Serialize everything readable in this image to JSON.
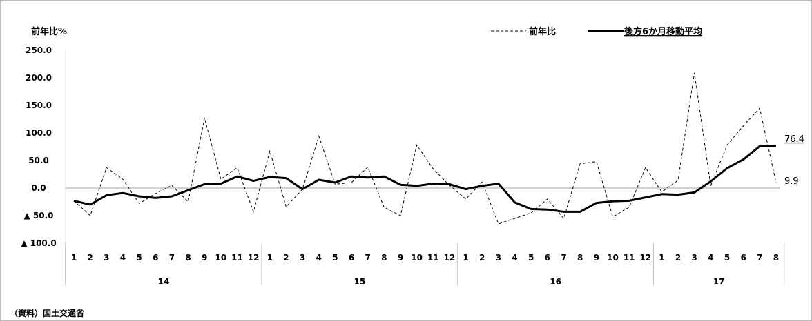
{
  "chart_data": {
    "type": "line",
    "ylabel": "前年比%",
    "ylim": [
      -100,
      250
    ],
    "yticks": [
      250,
      200,
      150,
      100,
      50,
      0,
      -50,
      -100
    ],
    "ytick_labels": [
      "250.0",
      "200.0",
      "150.0",
      "100.0",
      "50.0",
      "0.0",
      "▲ 50.0",
      "▲ 100.0"
    ],
    "months": [
      "1",
      "2",
      "3",
      "4",
      "5",
      "6",
      "7",
      "8",
      "9",
      "10",
      "11",
      "12",
      "1",
      "2",
      "3",
      "4",
      "5",
      "6",
      "7",
      "8",
      "9",
      "10",
      "11",
      "12",
      "1",
      "2",
      "3",
      "4",
      "5",
      "6",
      "7",
      "8",
      "9",
      "10",
      "11",
      "12",
      "1",
      "2",
      "3",
      "4",
      "5",
      "6",
      "7",
      "8"
    ],
    "years": [
      {
        "label": "14",
        "months": 12
      },
      {
        "label": "15",
        "months": 12
      },
      {
        "label": "16",
        "months": 12
      },
      {
        "label": "17",
        "months": 8
      }
    ],
    "series": [
      {
        "name": "前年比",
        "style": "dashed",
        "values": [
          -23,
          -50,
          37,
          16,
          -28,
          -10,
          5,
          -25,
          127,
          16,
          37,
          -43,
          67,
          -34,
          -2,
          94,
          7,
          10,
          38,
          -35,
          -50,
          78,
          35,
          5,
          -20,
          11,
          -65,
          -55,
          -45,
          -20,
          -55,
          44,
          48,
          -52,
          -35,
          37,
          -7,
          14,
          209,
          4,
          78,
          113,
          145,
          10
        ],
        "end_label": "9.9"
      },
      {
        "name": "後方6か月移動平均",
        "style": "solid-bold",
        "values": [
          -23,
          -30,
          -13,
          -9,
          -15,
          -18,
          -15,
          -4,
          7,
          8,
          21,
          13,
          20,
          18,
          -2,
          15,
          10,
          21,
          19,
          21,
          6,
          4,
          8,
          7,
          -2,
          4,
          8,
          -26,
          -38,
          -39,
          -43,
          -43,
          -27,
          -24,
          -23,
          -17,
          -11,
          -12,
          -8,
          12,
          36,
          52,
          76,
          76.4
        ],
        "end_label": "76.4"
      }
    ],
    "legend_position": "top-right",
    "grid": false,
    "zero_line": true
  },
  "source_note": "（資料）国土交通省"
}
